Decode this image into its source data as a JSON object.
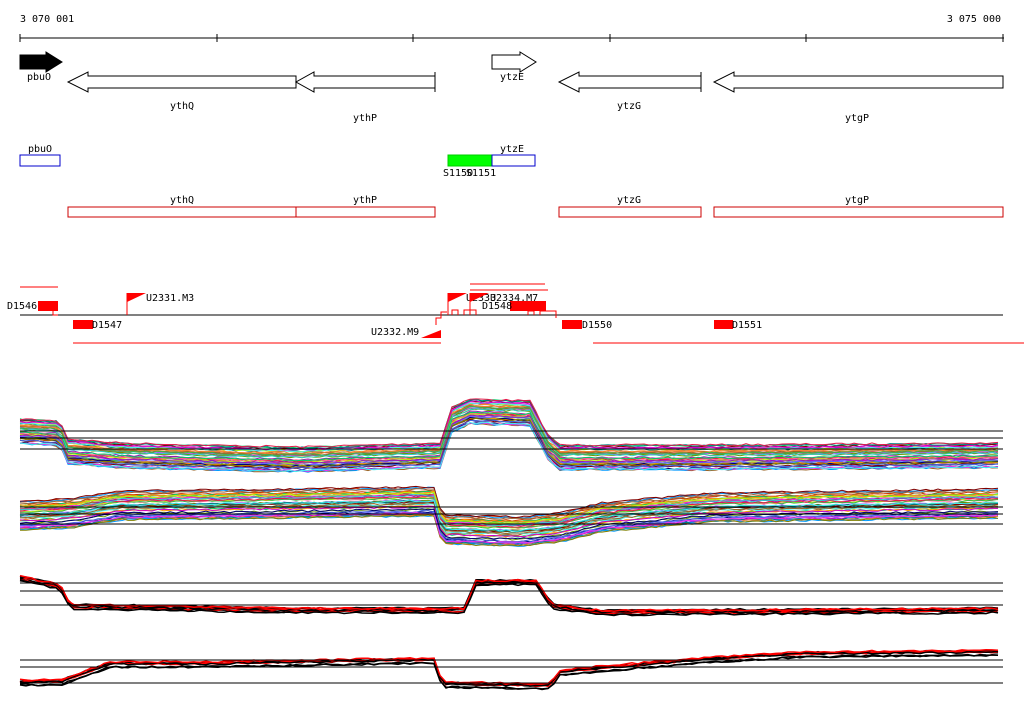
{
  "ruler": {
    "start_label": "3 070 001",
    "end_label": "3 075 000"
  },
  "genes": [
    {
      "name": "pbuO",
      "strand": "+",
      "filled": true
    },
    {
      "name": "ythQ",
      "strand": "-"
    },
    {
      "name": "ythP",
      "strand": "-"
    },
    {
      "name": "ytzE",
      "strand": "+"
    },
    {
      "name": "ytzG",
      "strand": "-"
    },
    {
      "name": "ytgP",
      "strand": "-"
    }
  ],
  "annotation_boxes": [
    {
      "name": "pbuO",
      "color": "#0000cc"
    },
    {
      "name": "ytzE",
      "color": "#0000cc"
    },
    {
      "name": "ythQ",
      "color": "#cc0000"
    },
    {
      "name": "ythP",
      "color": "#cc0000"
    },
    {
      "name": "ytzG",
      "color": "#cc0000"
    },
    {
      "name": "ytgP",
      "color": "#cc0000"
    }
  ],
  "green_feature": {
    "labels": [
      "S1150",
      "S1151"
    ],
    "color": "#00ff00"
  },
  "segments": {
    "downstream": [
      "D1546",
      "D1547",
      "D1548",
      "D1550",
      "D1551"
    ],
    "upstream": [
      "U2331.M3",
      "U2332.M9",
      "U2333",
      "U2334.M7"
    ]
  },
  "colors": {
    "feature_red": "#ff0000",
    "arrow_black": "#000000"
  }
}
